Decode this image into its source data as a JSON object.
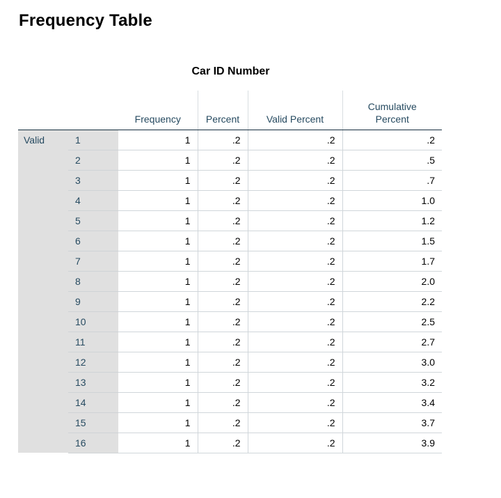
{
  "page_title": "Frequency Table",
  "table": {
    "title": "Car ID Number",
    "headers": {
      "frequency": "Frequency",
      "percent": "Percent",
      "valid_percent": "Valid Percent",
      "cumulative_percent_line1": "Cumulative",
      "cumulative_percent_line2": "Percent"
    },
    "section_label": "Valid",
    "rows": [
      {
        "category": "1",
        "frequency": "1",
        "percent": ".2",
        "valid_percent": ".2",
        "cumulative_percent": ".2"
      },
      {
        "category": "2",
        "frequency": "1",
        "percent": ".2",
        "valid_percent": ".2",
        "cumulative_percent": ".5"
      },
      {
        "category": "3",
        "frequency": "1",
        "percent": ".2",
        "valid_percent": ".2",
        "cumulative_percent": ".7"
      },
      {
        "category": "4",
        "frequency": "1",
        "percent": ".2",
        "valid_percent": ".2",
        "cumulative_percent": "1.0"
      },
      {
        "category": "5",
        "frequency": "1",
        "percent": ".2",
        "valid_percent": ".2",
        "cumulative_percent": "1.2"
      },
      {
        "category": "6",
        "frequency": "1",
        "percent": ".2",
        "valid_percent": ".2",
        "cumulative_percent": "1.5"
      },
      {
        "category": "7",
        "frequency": "1",
        "percent": ".2",
        "valid_percent": ".2",
        "cumulative_percent": "1.7"
      },
      {
        "category": "8",
        "frequency": "1",
        "percent": ".2",
        "valid_percent": ".2",
        "cumulative_percent": "2.0"
      },
      {
        "category": "9",
        "frequency": "1",
        "percent": ".2",
        "valid_percent": ".2",
        "cumulative_percent": "2.2"
      },
      {
        "category": "10",
        "frequency": "1",
        "percent": ".2",
        "valid_percent": ".2",
        "cumulative_percent": "2.5"
      },
      {
        "category": "11",
        "frequency": "1",
        "percent": ".2",
        "valid_percent": ".2",
        "cumulative_percent": "2.7"
      },
      {
        "category": "12",
        "frequency": "1",
        "percent": ".2",
        "valid_percent": ".2",
        "cumulative_percent": "3.0"
      },
      {
        "category": "13",
        "frequency": "1",
        "percent": ".2",
        "valid_percent": ".2",
        "cumulative_percent": "3.2"
      },
      {
        "category": "14",
        "frequency": "1",
        "percent": ".2",
        "valid_percent": ".2",
        "cumulative_percent": "3.4"
      },
      {
        "category": "15",
        "frequency": "1",
        "percent": ".2",
        "valid_percent": ".2",
        "cumulative_percent": "3.7"
      },
      {
        "category": "16",
        "frequency": "1",
        "percent": ".2",
        "valid_percent": ".2",
        "cumulative_percent": "3.9"
      }
    ]
  }
}
